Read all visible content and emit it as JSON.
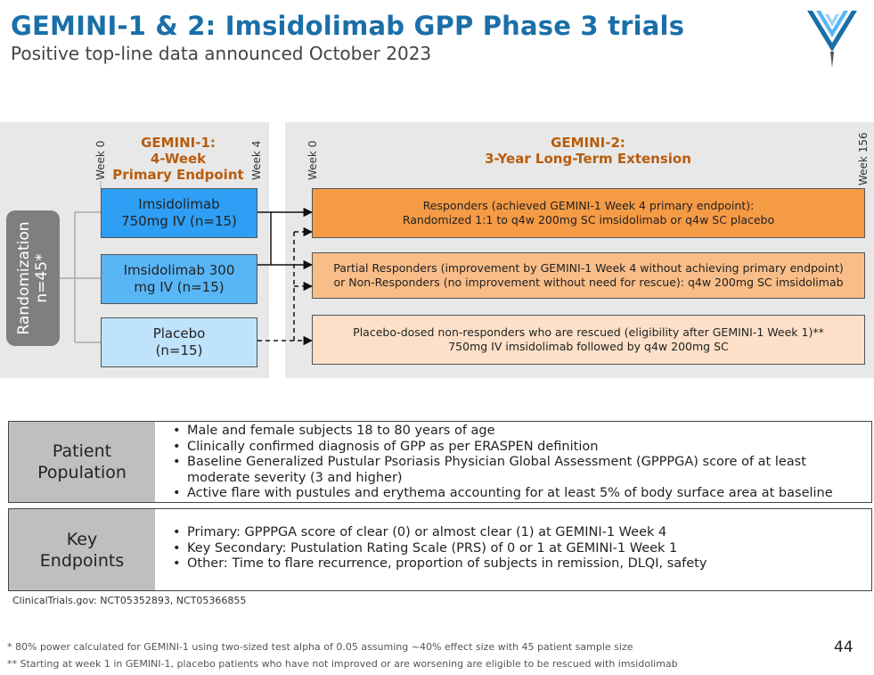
{
  "header": {
    "title": "GEMINI-1 & 2: Imsidolimab GPP Phase 3 trials",
    "subtitle": "Positive top-line data announced October 2023",
    "logo_icon": "company-logo-icon"
  },
  "diagram": {
    "gemini1": {
      "title_line1": "GEMINI-1:",
      "title_line2": "4-Week",
      "title_line3": "Primary Endpoint",
      "week_start": "Week 0",
      "week_end": "Week 4"
    },
    "gemini2": {
      "title_line1": "GEMINI-2:",
      "title_line2": "3-Year Long-Term Extension",
      "week_start": "Week 0",
      "week_end": "Week 156"
    },
    "randomization": {
      "line1": "Randomization",
      "line2": "n=45*"
    },
    "arms": [
      {
        "line1": "Imsidolimab",
        "line2": "750mg IV (n=15)"
      },
      {
        "line1": "Imsidolimab 300",
        "line2": "mg IV (n=15)"
      },
      {
        "line1": "Placebo",
        "line2": "(n=15)"
      }
    ],
    "extensions": [
      {
        "line1": "Responders (achieved GEMINI-1 Week 4 primary endpoint):",
        "line2": "Randomized 1:1 to q4w 200mg SC imsidolimab or q4w SC placebo"
      },
      {
        "line1": "Partial Responders (improvement by GEMINI-1 Week 4 without achieving primary endpoint)",
        "line2": "or Non-Responders (no improvement without need for rescue): q4w 200mg SC imsidolimab"
      },
      {
        "line1": "Placebo-dosed non-responders who are rescued (eligibility after GEMINI-1 Week 1)**",
        "line2": "750mg IV imsidolimab followed by q4w 200mg SC"
      }
    ],
    "colors": {
      "arm1": "#2e9ff5",
      "arm2": "#58b6f7",
      "arm3": "#bfe3fb",
      "ext1": "#f59a45",
      "ext2": "#f8bd88",
      "ext3": "#fde0c7",
      "phase_title": "#b85c0c",
      "title": "#1a6fa8"
    }
  },
  "patient_population": {
    "label_line1": "Patient",
    "label_line2": "Population",
    "items": [
      "Male and female subjects 18 to 80 years of age",
      "Clinically confirmed diagnosis of GPP as per ERASPEN definition",
      "Baseline Generalized Pustular Psoriasis Physician Global Assessment (GPPPGA) score of at least moderate severity (3 and higher)",
      "Active flare with pustules and erythema accounting for at least 5% of body surface area at baseline"
    ]
  },
  "key_endpoints": {
    "label_line1": "Key",
    "label_line2": "Endpoints",
    "items": [
      "Primary: GPPPGA score of clear (0) or almost clear (1) at GEMINI-1 Week 4",
      "Key Secondary: Pustulation Rating Scale (PRS) of 0 or 1 at GEMINI-1 Week 1",
      "Other: Time to flare recurrence, proportion of subjects in remission, DLQI, safety"
    ]
  },
  "footer": {
    "clinicaltrials": "ClinicalTrials.gov:  NCT05352893, NCT05366855",
    "footnote1": "* 80% power calculated for GEMINI-1 using two-sized test alpha of 0.05 assuming ~40% effect size with 45 patient sample size",
    "footnote2": "** Starting at week 1 in GEMINI-1, placebo patients who have not improved or are worsening are eligible to be rescued with imsidolimab",
    "page_number": "44"
  }
}
